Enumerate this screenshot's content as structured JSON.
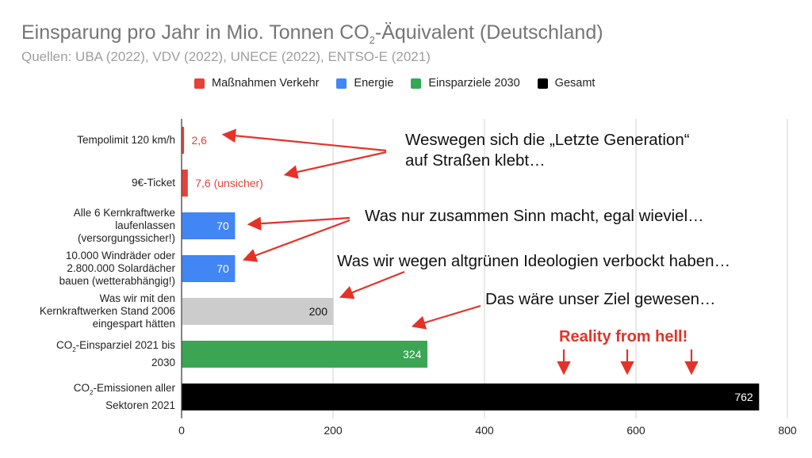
{
  "chart_data": {
    "type": "bar",
    "orientation": "horizontal",
    "title_main": "Einsparung pro Jahr in Mio. Tonnen CO",
    "title_sub": "2",
    "title_rest": "-Äquivalent (Deutschland)",
    "subtitle": "Quellen: UBA (2022), VDV (2022), UNECE (2022), ENTSO-E (2021)",
    "legend": [
      {
        "name": "Maßnahmen Verkehr",
        "color": "#e5423a"
      },
      {
        "name": "Energie",
        "color": "#4285f4"
      },
      {
        "name": "Einsparziele 2030",
        "color": "#34a853"
      },
      {
        "name": "Gesamt",
        "color": "#000000"
      }
    ],
    "legend_position": "top",
    "categories": [
      "Tempolimit 120 km/h",
      "9€-Ticket",
      "Alle 6 Kernkraftwerke laufenlassen (versorgungssicher!)",
      "10.000 Windräder oder 2.800.000 Solardächer bauen (wetterabhängig!)",
      "Was wir mit den Kernkraftwerken Stand 2006 eingespart hätten",
      "CO₂-Einsparziel 2021 bis 2030",
      "CO₂-Emissionen aller Sektoren 2021"
    ],
    "category_lines": [
      [
        "Tempolimit 120 km/h"
      ],
      [
        "9€-Ticket"
      ],
      [
        "Alle 6 Kernkraftwerke",
        "laufenlassen",
        "(versorgungssicher!)"
      ],
      [
        "10.000 Windräder oder",
        "2.800.000 Solardächer",
        "bauen (wetterabhängig!)"
      ],
      [
        "Was wir mit den",
        "Kernkraftwerken Stand 2006",
        "eingespart hätten"
      ],
      [
        "CO|2|-Einsparziel 2021 bis",
        "2030"
      ],
      [
        "CO|2|-Emissionen aller",
        "Sektoren 2021"
      ]
    ],
    "values": [
      2.6,
      7.6,
      70,
      70,
      200,
      324,
      762
    ],
    "data_labels": [
      "2,6",
      "7,6 (unsicher)",
      "70",
      "70",
      "200",
      "324",
      "762"
    ],
    "colors": [
      "#e5423a",
      "#e5423a",
      "#4285f4",
      "#4285f4",
      "#cccccc",
      "#3ba553",
      "#000000"
    ],
    "xlim": [
      0,
      800
    ],
    "xticks": [
      "0",
      "200",
      "400",
      "600",
      "800"
    ],
    "grid": true
  },
  "annotations": [
    "Weswegen sich die „Letzte Generation“",
    "auf Straßen klebt…",
    "Was nur zusammen Sinn macht, egal wieviel…",
    "Was wir wegen altgrünen Ideologien verbockt haben…",
    "Das wäre unser Ziel gewesen…",
    "Reality from hell!"
  ],
  "annotation_color": "#e53228"
}
